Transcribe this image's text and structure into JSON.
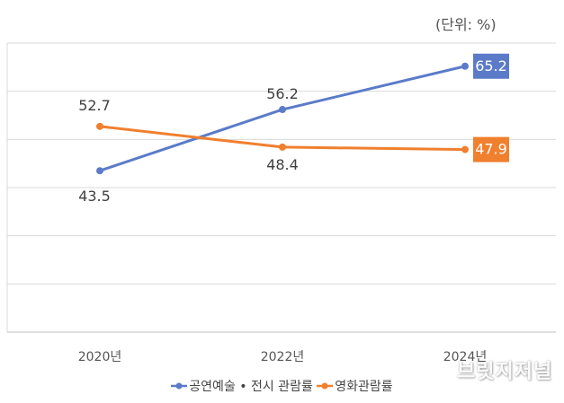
{
  "unit_label": "(단위: %)",
  "watermark": "브릿지저널",
  "chart_data": {
    "type": "line",
    "categories": [
      "2020년",
      "2022년",
      "2024년"
    ],
    "series": [
      {
        "name": "공연예술 • 전시 관람률",
        "values": [
          43.5,
          56.2,
          65.2
        ],
        "color": "#5B7BC9"
      },
      {
        "name": "영화관람률",
        "values": [
          52.7,
          48.4,
          47.9
        ],
        "color": "#F07F2E"
      }
    ],
    "data_labels": [
      [
        "43.5",
        "56.2",
        "65.2"
      ],
      [
        "52.7",
        "48.4",
        "47.9"
      ]
    ],
    "ylim": [
      10,
      70
    ],
    "grid": true,
    "legend": "bottom",
    "title": "",
    "xlabel": "",
    "ylabel": ""
  }
}
